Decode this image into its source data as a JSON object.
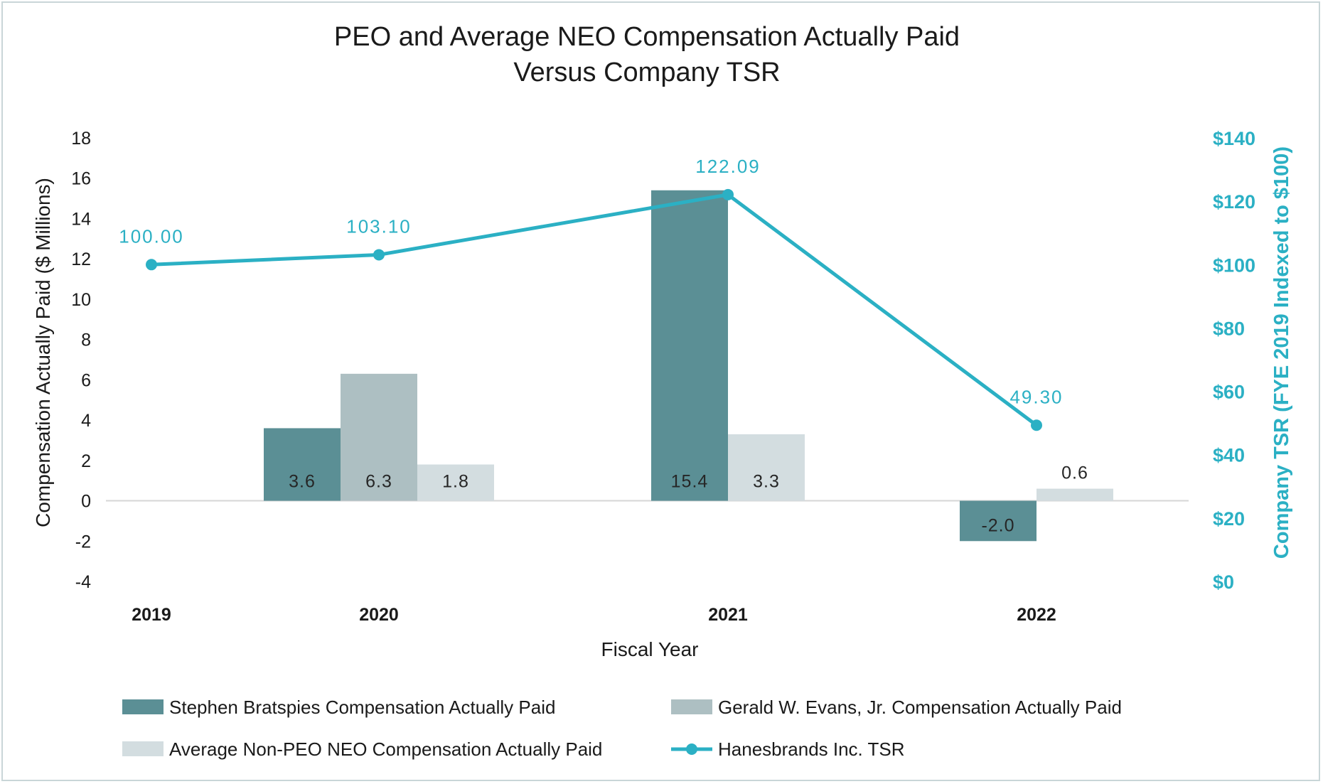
{
  "chart_data": {
    "type": "bar",
    "title_lines": [
      "PEO and Average NEO Compensation Actually Paid",
      "Versus Company TSR"
    ],
    "xlabel": "Fiscal Year",
    "ylabel": "Compensation Actually Paid ($ Millions)",
    "y2label": "Company TSR (FYE 2019 Indexed to $100)",
    "categories": [
      "2019",
      "2020",
      "2021",
      "2022"
    ],
    "ylim": [
      -4,
      18
    ],
    "yticks": [
      "18",
      "16",
      "14",
      "12",
      "10",
      "8",
      "6",
      "4",
      "2",
      "0",
      "-2",
      "-4"
    ],
    "y2lim": [
      0,
      140
    ],
    "y2ticks": [
      "$140",
      "$120",
      "$100",
      "$80",
      "$60",
      "$40",
      "$20",
      "$0"
    ],
    "series": [
      {
        "name": "Stephen Bratspies Compensation Actually Paid",
        "type": "bar",
        "color": "#5b8f95",
        "values": [
          null,
          3.6,
          15.4,
          -2.0
        ],
        "labels": [
          "",
          "3.6",
          "15.4",
          "-2.0"
        ]
      },
      {
        "name": "Gerald W. Evans, Jr. Compensation Actually Paid",
        "type": "bar",
        "color": "#adbfc2",
        "values": [
          null,
          6.3,
          null,
          null
        ],
        "labels": [
          "",
          "6.3",
          "",
          ""
        ]
      },
      {
        "name": "Average Non-PEO NEO Compensation Actually Paid",
        "type": "bar",
        "color": "#d3dde0",
        "values": [
          null,
          1.8,
          3.3,
          0.6
        ],
        "labels": [
          "",
          "1.8",
          "3.3",
          "0.6"
        ]
      },
      {
        "name": "Hanesbrands Inc. TSR",
        "type": "line",
        "axis": "right",
        "color": "#2bb0c4",
        "values": [
          100.0,
          103.1,
          122.09,
          49.3
        ],
        "labels": [
          "100.00",
          "103.10",
          "122.09",
          "49.30"
        ]
      }
    ],
    "legend_position": "bottom"
  }
}
